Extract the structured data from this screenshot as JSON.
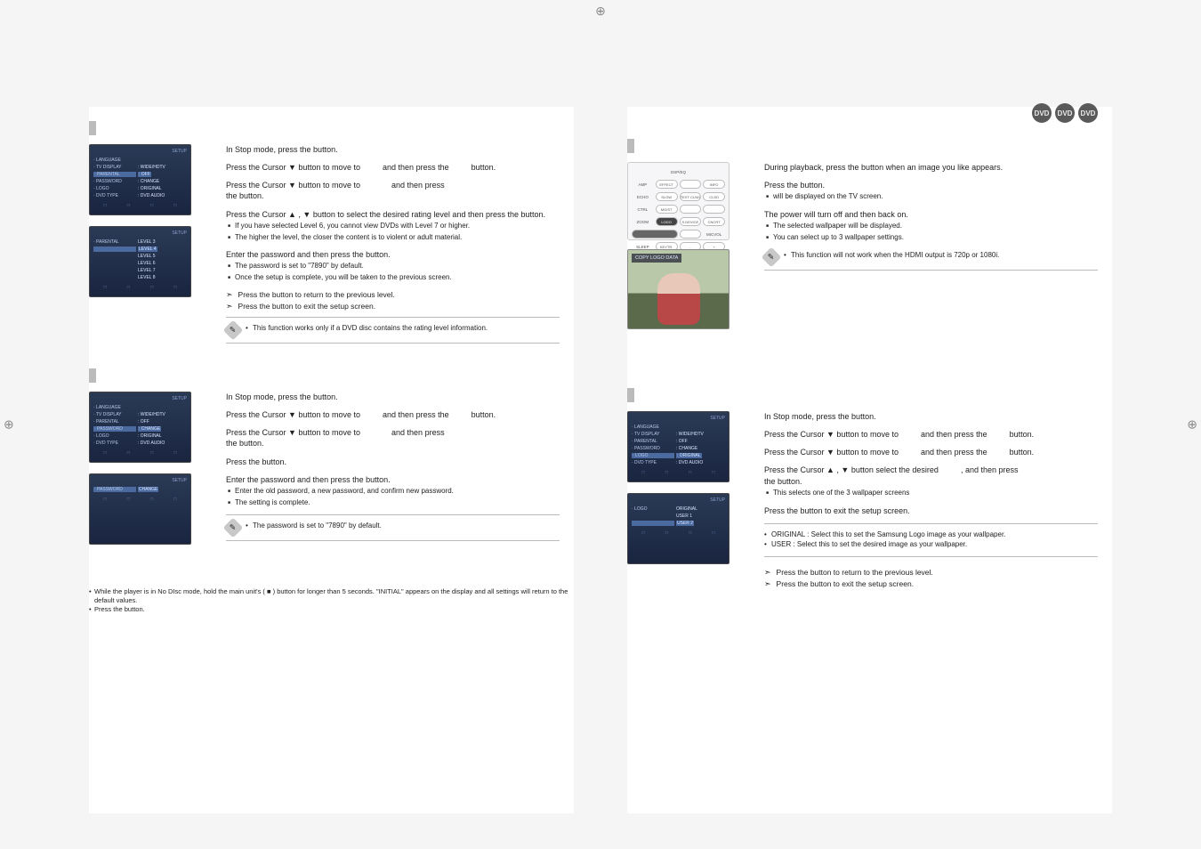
{
  "crop_glyph": "⊕",
  "badges": [
    "DVD",
    "DVD",
    "DVD"
  ],
  "rating": {
    "menu1": {
      "title_l": "",
      "title_r": "SETUP",
      "rows": [
        {
          "l": "· LANGUAGE",
          "r": "",
          "hl": false
        },
        {
          "l": "· TV DISPLAY",
          "r": ": WIDE/HDTV ",
          "hl": false
        },
        {
          "l": "· PARENTAL",
          "r": ": OFF",
          "hl": true
        },
        {
          "l": "· PASSWORD",
          "r": ": CHANGE",
          "hl": false
        },
        {
          "l": "· LOGO",
          "r": ": ORIGINAL",
          "hl": false
        },
        {
          "l": "· DVD TYPE",
          "r": ": DVD AUDIO ",
          "hl": false
        }
      ],
      "foot": [
        "",
        "",
        "",
        ""
      ]
    },
    "menu2": {
      "title_l": "",
      "title_r": "SETUP",
      "rows": [
        {
          "l": "· PARENTAL",
          "r": "LEVEL 3",
          "hl": false
        },
        {
          "l": "",
          "r": "LEVEL 4",
          "hl": true
        },
        {
          "l": "",
          "r": "LEVEL 5",
          "hl": false
        },
        {
          "l": "",
          "r": "LEVEL 6",
          "hl": false
        },
        {
          "l": "",
          "r": "LEVEL 7",
          "hl": false
        },
        {
          "l": "",
          "r": "LEVEL 8",
          "hl": false
        }
      ],
      "foot": [
        "",
        "",
        "",
        ""
      ]
    },
    "s1": "In Stop mode, press the            button.",
    "s2a": "Press the Cursor ▼ button to move to",
    "s2b": "and then press the",
    "s2c": "button.",
    "s3a": "Press the Cursor ▼ button to move to",
    "s3b": "and then press",
    "s3c": "the           button.",
    "s4": "Press the Cursor ▲ , ▼ button to select the desired rating level and then press the            button.",
    "s4_sub1": "If you have selected Level 6, you cannot view DVDs with Level 7 or higher.",
    "s4_sub2": "The higher the level, the closer the content is to violent or adult material.",
    "s5": "Enter the password and then press the              button.",
    "s5_sub1": "The password is set to \"7890\" by default.",
    "s5_sub2": "Once the setup is complete, you will be taken to the previous screen.",
    "ret1": "Press the               button to return to the previous level.",
    "ret2": "Press the           button to exit the setup screen.",
    "tip": "This function works only if a DVD disc contains the rating level information."
  },
  "password": {
    "menu1": {
      "title_l": "",
      "title_r": "SETUP",
      "rows": [
        {
          "l": "· LANGUAGE",
          "r": "",
          "hl": false
        },
        {
          "l": "· TV DISPLAY",
          "r": ": WIDE/HDTV ",
          "hl": false
        },
        {
          "l": "· PARENTAL",
          "r": ": OFF",
          "hl": false
        },
        {
          "l": "· PASSWORD",
          "r": ": CHANGE",
          "hl": true
        },
        {
          "l": "· LOGO",
          "r": ": ORIGINAL",
          "hl": false
        },
        {
          "l": "· DVD TYPE",
          "r": ": DVD AUDIO ",
          "hl": false
        }
      ],
      "foot": [
        "",
        "",
        "",
        ""
      ]
    },
    "menu2": {
      "title_l": "",
      "title_r": "SETUP",
      "rows": [
        {
          "l": "· PASSWORD",
          "r": "CHANGE",
          "hl": true
        }
      ],
      "foot": [
        "",
        "",
        "",
        ""
      ]
    },
    "s1": "In Stop mode, press the            button.",
    "s2a": "Press the Cursor ▼ button to move to",
    "s2b": "and then press the",
    "s2c": "button.",
    "s3a": "Press the Cursor ▼ button to move to",
    "s3b": "and then press",
    "s3c": "the           button.",
    "s4": "Press the             button.",
    "s5": "Enter the password and then press the              button.",
    "s5_sub1": "Enter the old password, a new password, and confirm new password.",
    "s5_sub2": "The setting is complete.",
    "tip": "The password is set to \"7890\" by default."
  },
  "footnote": {
    "l1": "While the player is in No DIsc mode, hold the main unit's         ( ■ ) button for longer than 5 seconds. \"INITIAL\" appears on  the display and all settings will return to the default values.",
    "l2": "Press the              button."
  },
  "wallpaper_reg": {
    "remote_labels": {
      "top": "DSP/EQ",
      "r1": [
        "EFFECT",
        "",
        "INFO"
      ],
      "r2": [
        "SLOW",
        "TEXT CLNG",
        "CLSD"
      ],
      "r3": [
        "MO/ST",
        "",
        ""
      ],
      "r4": [
        "LOGO",
        "S.DEVICE",
        "CNCRT"
      ],
      "r5": [
        "SLEEP",
        "",
        "MICVOL"
      ],
      "r6": [
        "KEYTR.",
        "-",
        "+"
      ]
    },
    "photo_banner": "COPY LOGO DATA",
    "s1": "During playback, press the                    button when an image you like appears.",
    "s2": "Press the            button.",
    "s2_sub": "                          will be displayed on the TV screen.",
    "s3": "The power will turn off and then back on.",
    "s3_sub1": "The selected wallpaper will be displayed.",
    "s3_sub2": "You can select up to 3 wallpaper settings.",
    "tip": "This function will not work when the HDMI output is 720p or 1080i."
  },
  "wallpaper_set": {
    "menu1": {
      "title_l": "",
      "title_r": "SETUP",
      "rows": [
        {
          "l": "· LANGUAGE",
          "r": "",
          "hl": false
        },
        {
          "l": "· TV DISPLAY",
          "r": ": WIDE/HDTV ",
          "hl": false
        },
        {
          "l": "· PARENTAL",
          "r": ": OFF",
          "hl": false
        },
        {
          "l": "· PASSWORD",
          "r": ": CHANGE",
          "hl": false
        },
        {
          "l": "· LOGO",
          "r": ": ORIGINAL",
          "hl": true
        },
        {
          "l": "· DVD TYPE",
          "r": ": DVD AUDIO ",
          "hl": false
        }
      ],
      "foot": [
        "",
        "",
        "",
        ""
      ]
    },
    "menu2": {
      "title_l": "",
      "title_r": "SETUP",
      "rows": [
        {
          "l": "· LOGO",
          "r": "ORIGINAL",
          "hl": false
        },
        {
          "l": "",
          "r": "USER 1",
          "hl": false
        },
        {
          "l": "",
          "r": "USER 2",
          "hl": true
        }
      ],
      "foot": [
        "",
        "",
        "",
        ""
      ]
    },
    "s1": "In Stop mode, press the            button.",
    "s2a": "Press the Cursor ▼ button to move to",
    "s2b": "and then press the",
    "s2c": "button.",
    "s3a": "Press the Cursor ▼ button to move to",
    "s3b": "and then press the",
    "s3c": "button.",
    "s4a": "Press the Cursor ▲ , ▼ button select the desired",
    "s4b": ", and then press",
    "s4c": "the            button.",
    "s4_sub": "This selects one of the 3 wallpaper screens",
    "s5": "Press the           button to exit the setup screen.",
    "note1": "ORIGINAL : Select this to set the Samsung Logo image as your wallpaper.",
    "note2": "USER : Select this to set the desired image as your wallpaper.",
    "ret1": "Press the               button to return to the previous level.",
    "ret2": "Press the           button to exit the setup screen."
  }
}
